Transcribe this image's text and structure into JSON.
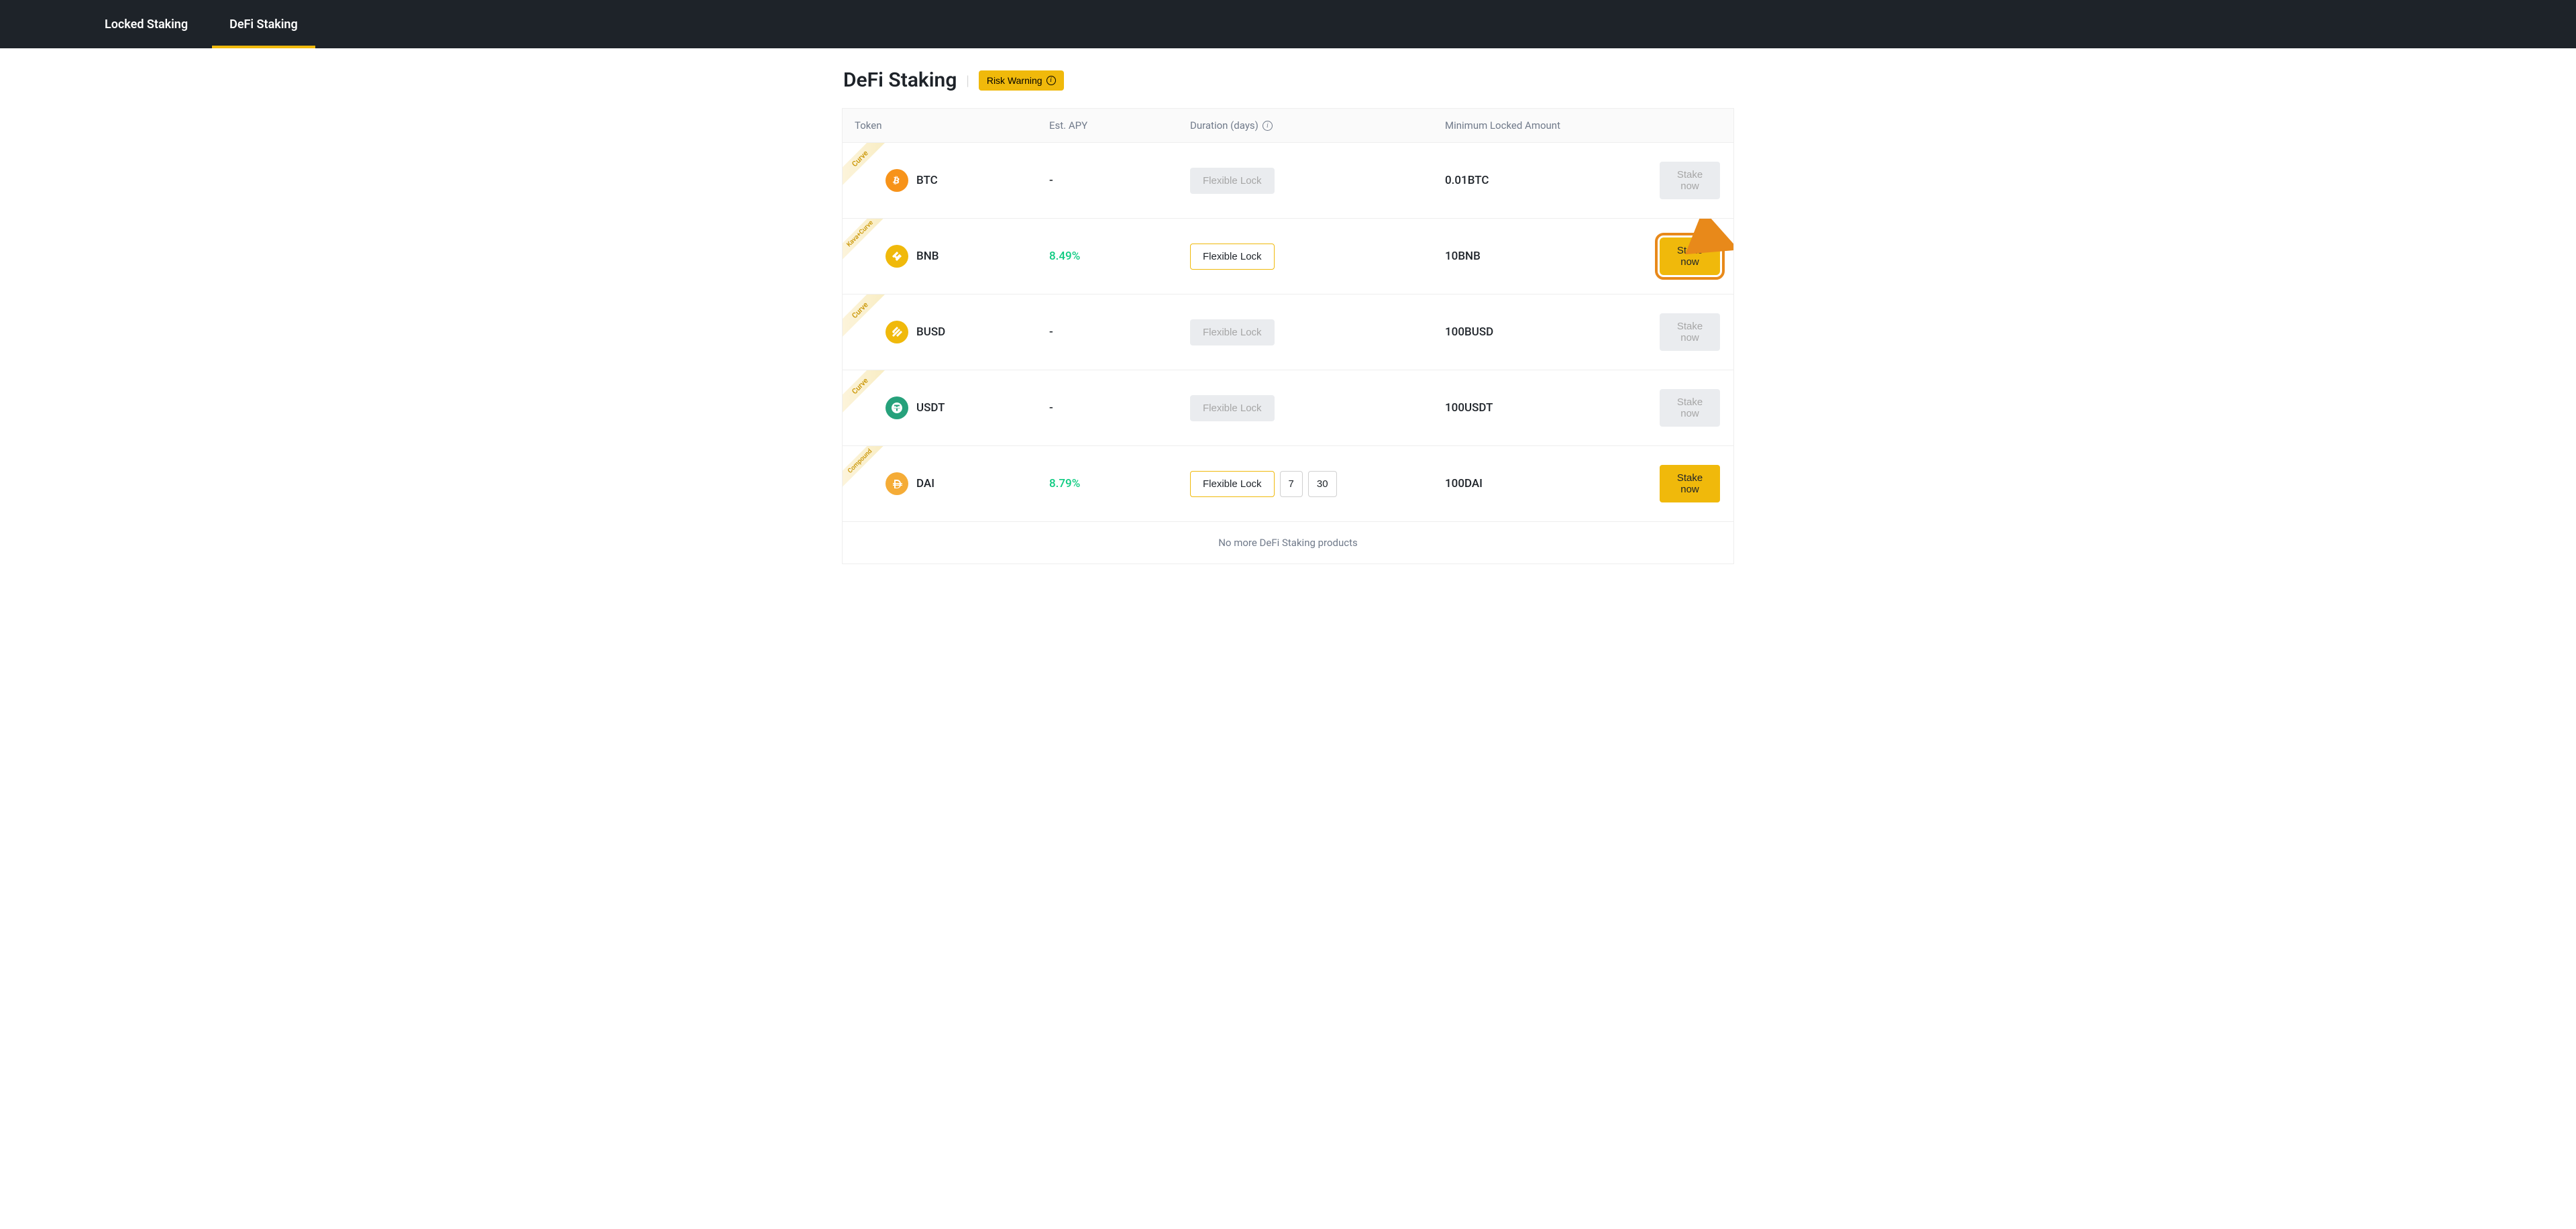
{
  "tabs": {
    "locked": "Locked Staking",
    "defi": "DeFi Staking"
  },
  "page": {
    "title": "DeFi Staking",
    "risk_warning": "Risk Warning"
  },
  "columns": {
    "token": "Token",
    "apy": "Est. APY",
    "duration": "Duration (days)",
    "min": "Minimum Locked Amount"
  },
  "labels": {
    "flexible_lock": "Flexible Lock",
    "stake_now": "Stake now",
    "no_more": "No more DeFi Staking products"
  },
  "ribbons": {
    "curve": "Curve",
    "kava_curve": "Kava+Curve",
    "compound": "Compound"
  },
  "rows": [
    {
      "token": "BTC",
      "apy": "-",
      "min": "0.01BTC",
      "ribbon": "curve",
      "icon_bg": "#f7931a",
      "apy_color": "",
      "dur_state": "disabled",
      "durations": [],
      "stake_state": "disabled",
      "highlight": false
    },
    {
      "token": "BNB",
      "apy": "8.49%",
      "min": "10BNB",
      "ribbon": "kava_curve",
      "icon_bg": "#f0b90b",
      "apy_color": "green",
      "dur_state": "active",
      "durations": [],
      "stake_state": "enabled",
      "highlight": true
    },
    {
      "token": "BUSD",
      "apy": "-",
      "min": "100BUSD",
      "ribbon": "curve",
      "icon_bg": "#f0b90b",
      "apy_color": "",
      "dur_state": "disabled",
      "durations": [],
      "stake_state": "disabled",
      "highlight": false
    },
    {
      "token": "USDT",
      "apy": "-",
      "min": "100USDT",
      "ribbon": "curve",
      "icon_bg": "#26a17b",
      "apy_color": "",
      "dur_state": "disabled",
      "durations": [],
      "stake_state": "disabled",
      "highlight": false
    },
    {
      "token": "DAI",
      "apy": "8.79%",
      "min": "100DAI",
      "ribbon": "compound",
      "icon_bg": "#f5ac37",
      "apy_color": "green",
      "dur_state": "active",
      "durations": [
        "7",
        "30"
      ],
      "stake_state": "enabled",
      "highlight": false
    }
  ],
  "colors": {
    "accent": "#f0b90b",
    "highlight_outline": "#e8891a",
    "arrow": "#e8891a",
    "apy_green": "#0ecb81",
    "header_bg": "#1e2329"
  },
  "icons": {
    "BTC": "btc",
    "BNB": "bnb",
    "BUSD": "busd",
    "USDT": "usdt",
    "DAI": "dai"
  }
}
